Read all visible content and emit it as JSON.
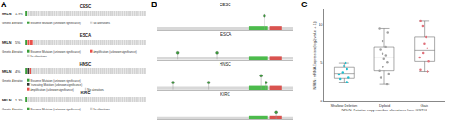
{
  "panel_labels": [
    "A",
    "B",
    "C"
  ],
  "oncoprint": {
    "legend_title": "Genetic Alteration",
    "samples": 60,
    "no_alteration": {
      "label": "No alterations",
      "color": "#d3d3d3"
    },
    "studies": [
      {
        "study": "CESC",
        "gene": "NRLN",
        "percent_label": "1.9%",
        "alterations": [
          {
            "label": "Missense Mutation (unknown significance)",
            "color": "#3a9e3a",
            "count": 1
          }
        ]
      },
      {
        "study": "ESCA",
        "gene": "NRLN",
        "percent_label": "5%",
        "alterations": [
          {
            "label": "Missense Mutation (unknown significance)",
            "color": "#3a9e3a",
            "count": 1
          },
          {
            "label": "Amplification (unknown significance)",
            "color": "#e8504a",
            "count": 3
          }
        ]
      },
      {
        "study": "HNSC",
        "gene": "NRLN",
        "percent_label": "4%",
        "alterations": [
          {
            "label": "Missense Mutation (unknown significance)",
            "color": "#3a9e3a",
            "count": 1
          },
          {
            "label": "Truncating Mutation (unknown significance)",
            "color": "#333333",
            "count": 1
          },
          {
            "label": "Amplification (unknown significance)",
            "color": "#e8504a",
            "count": 1
          }
        ]
      },
      {
        "study": "KIRC",
        "gene": "NRLN",
        "percent_label": "1.3%",
        "alterations": [
          {
            "label": "Missense Mutation (unknown significance)",
            "color": "#3a9e3a",
            "count": 1
          }
        ]
      }
    ]
  },
  "chart_data": [
    {
      "type": "lollipop",
      "title": "CESC",
      "xlim": [
        0,
        800
      ],
      "ylim": [
        0,
        3
      ],
      "tick_labels": false,
      "color": "#3a9e3a",
      "mutations": {
        "x": [
          630
        ],
        "values": [
          2
        ]
      },
      "domains": [
        {
          "start": 540,
          "end": 650,
          "color": "#4cbb4c"
        },
        {
          "start": 660,
          "end": 730,
          "color": "#d9534f"
        }
      ]
    },
    {
      "type": "lollipop",
      "title": "ESCA",
      "xlim": [
        0,
        800
      ],
      "ylim": [
        0,
        3
      ],
      "tick_labels": false,
      "color": "#3a9e3a",
      "mutations": {
        "x": [
          120,
          350
        ],
        "values": [
          1,
          1
        ]
      },
      "domains": [
        {
          "start": 540,
          "end": 650,
          "color": "#4cbb4c"
        },
        {
          "start": 660,
          "end": 730,
          "color": "#d9534f"
        }
      ]
    },
    {
      "type": "lollipop",
      "title": "HNSC",
      "xlim": [
        0,
        800
      ],
      "ylim": [
        0,
        3
      ],
      "tick_labels": false,
      "color": "#3a9e3a",
      "mutations": {
        "x": [
          90,
          300,
          610,
          640
        ],
        "values": [
          1,
          1,
          2,
          1
        ]
      },
      "domains": [
        {
          "start": 540,
          "end": 650,
          "color": "#4cbb4c"
        },
        {
          "start": 660,
          "end": 730,
          "color": "#d9534f"
        }
      ]
    },
    {
      "type": "lollipop",
      "title": "KIRC",
      "xlim": [
        0,
        800
      ],
      "ylim": [
        0,
        3
      ],
      "tick_labels": false,
      "color": "#3a9e3a",
      "mutations": {
        "x": [
          700
        ],
        "values": [
          1
        ]
      },
      "domains": [
        {
          "start": 540,
          "end": 650,
          "color": "#4cbb4c"
        },
        {
          "start": 660,
          "end": 730,
          "color": "#d9534f"
        }
      ]
    },
    {
      "type": "box",
      "xlabel": "NRLN: Putative copy-number alterations from GISTIC",
      "ylabel": "NRLN: mRNA Expression (log2(value + 1))",
      "categories": [
        "Shallow Deletion",
        "Diploid",
        "Gain"
      ],
      "colors": [
        "#1fbfcf",
        "#a0a0a0",
        "#e0707a"
      ],
      "values": [
        [
          3.1,
          4.2,
          2.5,
          5.0,
          3.8,
          4.6,
          2.9,
          3.5
        ],
        [
          4.5,
          6.2,
          3.1,
          7.8,
          5.5,
          2.2,
          8.9,
          6.7,
          4.0,
          5.1,
          9.5,
          3.6,
          7.1,
          6.0
        ],
        [
          5.2,
          7.5,
          4.1,
          9.8,
          6.3,
          8.4,
          3.9,
          10.5,
          6.9,
          5.7
        ]
      ],
      "ylim": [
        0,
        12
      ],
      "yticks": [
        0,
        5,
        10
      ]
    }
  ]
}
